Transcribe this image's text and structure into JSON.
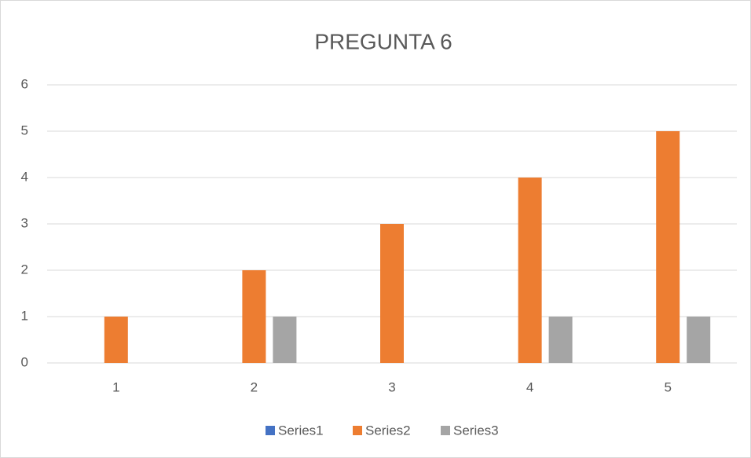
{
  "chart_data": {
    "type": "bar",
    "title": "PREGUNTA 6",
    "categories": [
      "1",
      "2",
      "3",
      "4",
      "5"
    ],
    "series": [
      {
        "name": "Series1",
        "color": "#4472c4",
        "values": [
          0,
          0,
          0,
          0,
          0
        ]
      },
      {
        "name": "Series2",
        "color": "#ed7d31",
        "values": [
          1,
          2,
          3,
          4,
          5
        ]
      },
      {
        "name": "Series3",
        "color": "#a5a5a5",
        "values": [
          0,
          1,
          0,
          1,
          1
        ]
      }
    ],
    "ylim": [
      0,
      6
    ],
    "yticks": [
      0,
      1,
      2,
      3,
      4,
      5,
      6
    ],
    "grid": true,
    "legend": "bottom"
  }
}
